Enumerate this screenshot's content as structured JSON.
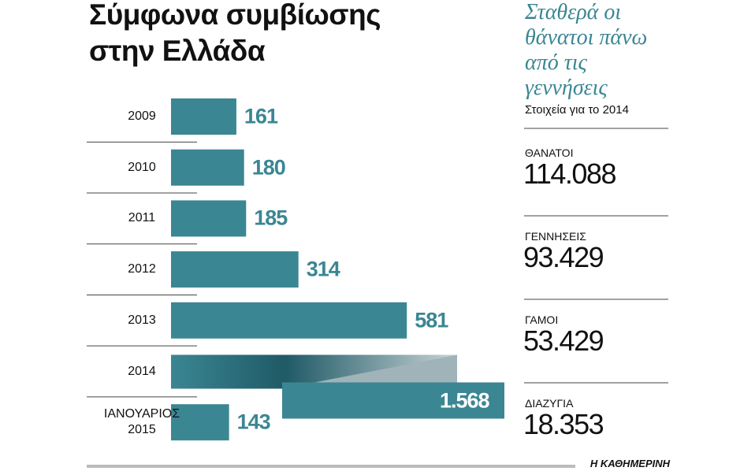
{
  "chart_data": {
    "type": "bar",
    "orientation": "horizontal",
    "title": "Σύμφωνα συμβίωσης στην Ελλάδα",
    "categories": [
      "2009",
      "2010",
      "2011",
      "2012",
      "2013",
      "2014",
      "ΙΑΝΟΥΑΡΙΟΣ 2015"
    ],
    "values": [
      161,
      180,
      185,
      314,
      581,
      1568,
      143
    ],
    "value_labels": [
      "161",
      "180",
      "185",
      "314",
      "581",
      "1.568",
      "143"
    ],
    "color": "#3b8693"
  },
  "side_panel": {
    "title": "Σταθερά οι θάνατοι πάνω από τις γεννήσεις",
    "subtitle": "Στοιχεία για το 2014",
    "stats": [
      {
        "label": "ΘΑΝΑΤΟΙ",
        "value": "114.088"
      },
      {
        "label": "ΓΕΝΝΗΣΕΙΣ",
        "value": "93.429"
      },
      {
        "label": "ΓΑΜΟΙ",
        "value": "53.429"
      },
      {
        "label": "ΔΙΑΖΥΓΙΑ",
        "value": "18.353"
      }
    ]
  },
  "source": "Η ΚΑΘΗΜΕΡΙΝΗ"
}
